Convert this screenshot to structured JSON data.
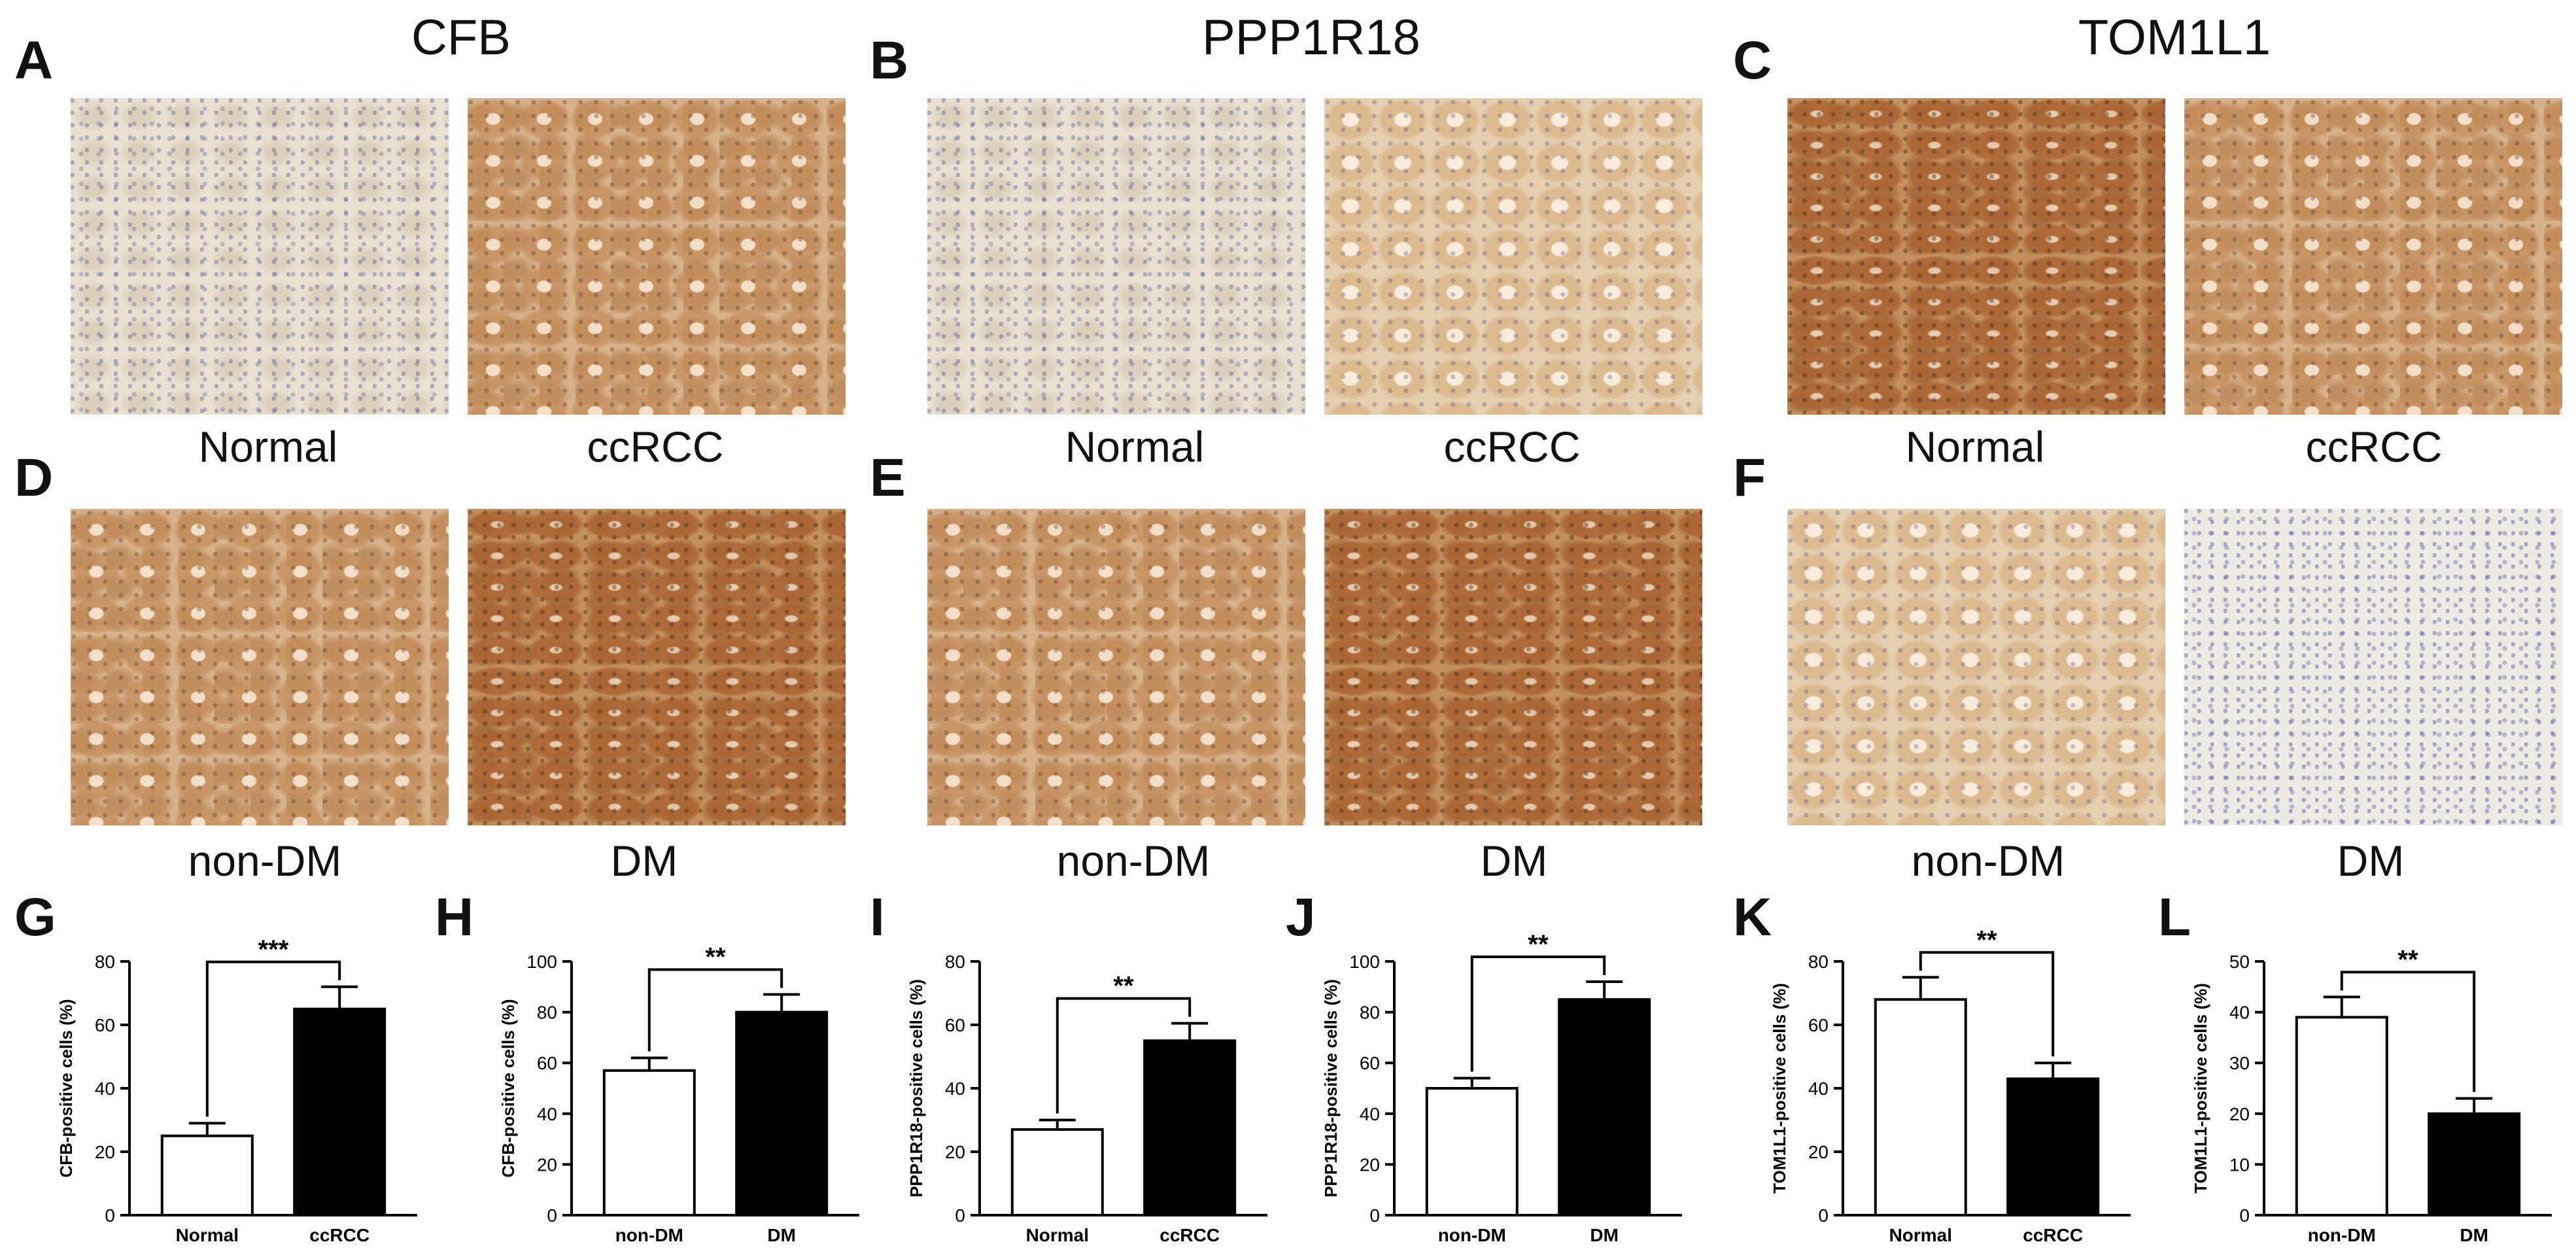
{
  "figure": {
    "genes": [
      {
        "letter": "A",
        "title": "CFB"
      },
      {
        "letter": "B",
        "title": "PPP1R18"
      },
      {
        "letter": "C",
        "title": "TOM1L1"
      }
    ],
    "row2_letters": [
      "D",
      "E",
      "F"
    ],
    "row1_captions": [
      [
        "Normal",
        "ccRCC"
      ],
      [
        "Normal",
        "ccRCC"
      ],
      [
        "Normal",
        "ccRCC"
      ]
    ],
    "row2_captions": [
      [
        "non-DM",
        "DM"
      ],
      [
        "non-DM",
        "DM"
      ],
      [
        "non-DM",
        "DM"
      ]
    ],
    "row1_stains": [
      [
        "pale",
        "brown"
      ],
      [
        "pale",
        "light-brown"
      ],
      [
        "deep",
        "brown"
      ]
    ],
    "row2_stains": [
      [
        "brown",
        "deep"
      ],
      [
        "brown",
        "deep"
      ],
      [
        "light-brown",
        "very-pale"
      ]
    ],
    "chart_letters": [
      "G",
      "H",
      "I",
      "J",
      "K",
      "L"
    ]
  },
  "chart_data": [
    {
      "type": "bar",
      "panel": "G",
      "categories": [
        "Normal",
        "ccRCC"
      ],
      "values": [
        25,
        65
      ],
      "errors": [
        4,
        7
      ],
      "fills": [
        "#ffffff",
        "#000000"
      ],
      "ylabel": "CFB-positive cells (%)",
      "ylim": [
        0,
        80
      ],
      "yticks": [
        0,
        20,
        40,
        60,
        80
      ],
      "significance": "***"
    },
    {
      "type": "bar",
      "panel": "H",
      "categories": [
        "non-DM",
        "DM"
      ],
      "values": [
        57,
        80
      ],
      "errors": [
        5,
        7
      ],
      "fills": [
        "#ffffff",
        "#000000"
      ],
      "ylabel": "CFB-positive cells (%)",
      "ylim": [
        0,
        100
      ],
      "yticks": [
        0,
        20,
        40,
        60,
        80,
        100
      ],
      "significance": "**"
    },
    {
      "type": "bar",
      "panel": "I",
      "categories": [
        "Normal",
        "ccRCC"
      ],
      "values": [
        27,
        55
      ],
      "errors": [
        3,
        5.5
      ],
      "fills": [
        "#ffffff",
        "#000000"
      ],
      "ylabel": "PPP1R18-positive cells (%)",
      "ylim": [
        0,
        80
      ],
      "yticks": [
        0,
        20,
        40,
        60,
        80
      ],
      "significance": "**"
    },
    {
      "type": "bar",
      "panel": "J",
      "categories": [
        "non-DM",
        "DM"
      ],
      "values": [
        50,
        85
      ],
      "errors": [
        4,
        7
      ],
      "fills": [
        "#ffffff",
        "#000000"
      ],
      "ylabel": "PPP1R18-positive cells (%)",
      "ylim": [
        0,
        100
      ],
      "yticks": [
        0,
        20,
        40,
        60,
        80,
        100
      ],
      "significance": "**"
    },
    {
      "type": "bar",
      "panel": "K",
      "categories": [
        "Normal",
        "ccRCC"
      ],
      "values": [
        68,
        43
      ],
      "errors": [
        7,
        5
      ],
      "fills": [
        "#ffffff",
        "#000000"
      ],
      "ylabel": "TOM1L1-positive cells (%)",
      "ylim": [
        0,
        80
      ],
      "yticks": [
        0,
        20,
        40,
        60,
        80
      ],
      "significance": "**"
    },
    {
      "type": "bar",
      "panel": "L",
      "categories": [
        "non-DM",
        "DM"
      ],
      "values": [
        39,
        20
      ],
      "errors": [
        4,
        3
      ],
      "fills": [
        "#ffffff",
        "#000000"
      ],
      "ylabel": "TOM1L1-positive cells (%)",
      "ylim": [
        0,
        50
      ],
      "yticks": [
        0,
        10,
        20,
        30,
        40,
        50
      ],
      "significance": "**"
    }
  ]
}
